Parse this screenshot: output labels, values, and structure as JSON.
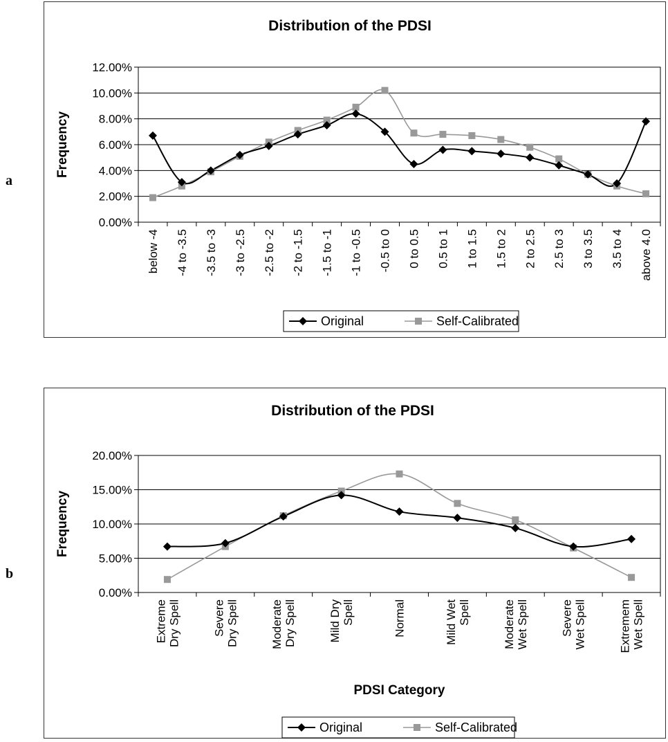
{
  "panels": {
    "a": {
      "letter": "a"
    },
    "b": {
      "letter": "b"
    }
  },
  "colors": {
    "original": "#000000",
    "self_calibrated": "#999999",
    "grid": "#000000",
    "axis": "#000000"
  },
  "chart_data": [
    {
      "type": "line",
      "title": "Distribution of the PDSI",
      "xlabel": "",
      "ylabel": "Frequency",
      "ylim": [
        0,
        0.12
      ],
      "yticks": [
        "0.00%",
        "2.00%",
        "4.00%",
        "6.00%",
        "8.00%",
        "10.00%",
        "12.00%"
      ],
      "grid": true,
      "legend": "bottom",
      "categories": [
        "below -4",
        "-4 to -3.5",
        "-3.5 to -3",
        "-3 to -2.5",
        "-2.5 to -2",
        "-2 to -1.5",
        "-1.5 to -1",
        "-1 to -0.5",
        "-0.5 to 0",
        "0 to 0.5",
        "0.5 to 1",
        "1 to 1.5",
        "1.5 to 2",
        "2 to 2.5",
        "2.5 to 3",
        "3 to 3.5",
        "3.5 to 4",
        "above 4.0"
      ],
      "series": [
        {
          "name": "Original",
          "marker": "diamond",
          "values": [
            0.067,
            0.031,
            0.04,
            0.052,
            0.059,
            0.068,
            0.075,
            0.084,
            0.07,
            0.045,
            0.056,
            0.055,
            0.053,
            0.05,
            0.044,
            0.037,
            0.03,
            0.078
          ]
        },
        {
          "name": "Self-Calibrated",
          "marker": "square",
          "values": [
            0.019,
            0.028,
            0.039,
            0.051,
            0.062,
            0.071,
            0.079,
            0.089,
            0.102,
            0.069,
            0.068,
            0.067,
            0.064,
            0.058,
            0.049,
            0.037,
            0.028,
            0.022
          ]
        }
      ]
    },
    {
      "type": "line",
      "title": "Distribution of the PDSI",
      "xlabel": "PDSI Category",
      "ylabel": "Frequency",
      "ylim": [
        0,
        0.2
      ],
      "yticks": [
        "0.00%",
        "5.00%",
        "10.00%",
        "15.00%",
        "20.00%"
      ],
      "grid": true,
      "legend": "bottom",
      "categories": [
        [
          "Extreme",
          "Dry Spell"
        ],
        [
          "Severe",
          "Dry Spell"
        ],
        [
          "Moderate",
          "Dry Spell"
        ],
        [
          "Mild Dry",
          "Spell"
        ],
        [
          "Normal"
        ],
        [
          "Mild Wet",
          "Spell"
        ],
        [
          "Moderate",
          "Wet Spell"
        ],
        [
          "Severe",
          "Wet Spell"
        ],
        [
          "Extremem",
          "Wet Spell"
        ]
      ],
      "series": [
        {
          "name": "Original",
          "marker": "diamond",
          "values": [
            0.067,
            0.072,
            0.111,
            0.142,
            0.118,
            0.109,
            0.094,
            0.067,
            0.078
          ]
        },
        {
          "name": "Self-Calibrated",
          "marker": "square",
          "values": [
            0.019,
            0.067,
            0.112,
            0.148,
            0.173,
            0.13,
            0.106,
            0.065,
            0.022
          ]
        }
      ]
    }
  ]
}
